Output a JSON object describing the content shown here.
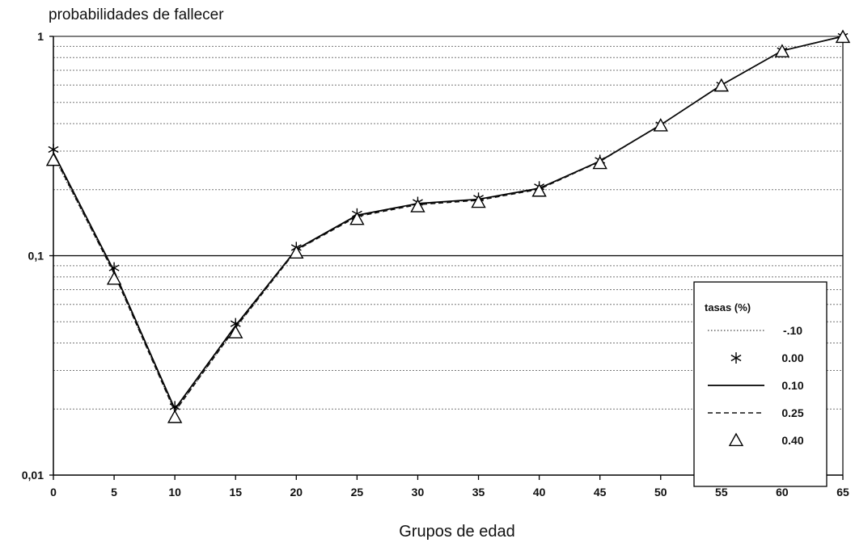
{
  "chart_data": {
    "type": "line",
    "title": "",
    "ylabel": "probabilidades de fallecer",
    "xlabel": "Grupos de edad",
    "y_scale": "log",
    "ylim": [
      0.01,
      1
    ],
    "y_tick_labels": [
      "0,01",
      "0,1",
      "1"
    ],
    "xlim": [
      0,
      65
    ],
    "x": [
      0,
      5,
      10,
      15,
      20,
      25,
      30,
      35,
      40,
      45,
      50,
      55,
      60,
      65
    ],
    "x_tick_labels": [
      "0",
      "5",
      "10",
      "15",
      "20",
      "25",
      "30",
      "35",
      "40",
      "45",
      "50",
      "55",
      "60",
      "65"
    ],
    "grid": "minor horizontal dotted lines, solid line at 0,1",
    "legend": {
      "title": "tasas (%)",
      "position": "right-middle",
      "entries": [
        "-.10",
        "0.00",
        "0.10",
        "0.25",
        "0.40"
      ]
    },
    "series": [
      {
        "name": "-.10",
        "style": "dotted",
        "marker": "none",
        "values": [
          0.285,
          0.083,
          0.0195,
          0.047,
          0.106,
          0.152,
          0.172,
          0.18,
          0.202,
          0.27,
          0.395,
          0.6,
          0.86,
          1.0
        ]
      },
      {
        "name": "0.00",
        "style": "none",
        "marker": "asterisk",
        "values": [
          0.305,
          0.088,
          0.0205,
          0.049,
          0.109,
          0.155,
          0.175,
          0.183,
          0.206,
          0.272,
          0.395,
          0.6,
          0.86,
          1.0
        ]
      },
      {
        "name": "0.10",
        "style": "solid",
        "marker": "none",
        "values": [
          0.295,
          0.085,
          0.02,
          0.048,
          0.107,
          0.153,
          0.173,
          0.181,
          0.203,
          0.27,
          0.395,
          0.6,
          0.86,
          1.0
        ]
      },
      {
        "name": "0.25",
        "style": "dashed",
        "marker": "none",
        "values": [
          0.29,
          0.083,
          0.0195,
          0.047,
          0.106,
          0.151,
          0.171,
          0.179,
          0.201,
          0.269,
          0.395,
          0.6,
          0.86,
          1.0
        ]
      },
      {
        "name": "0.40",
        "style": "none",
        "marker": "triangle",
        "values": [
          0.275,
          0.079,
          0.0185,
          0.045,
          0.104,
          0.148,
          0.169,
          0.177,
          0.199,
          0.266,
          0.395,
          0.6,
          0.86,
          1.0
        ]
      }
    ]
  }
}
